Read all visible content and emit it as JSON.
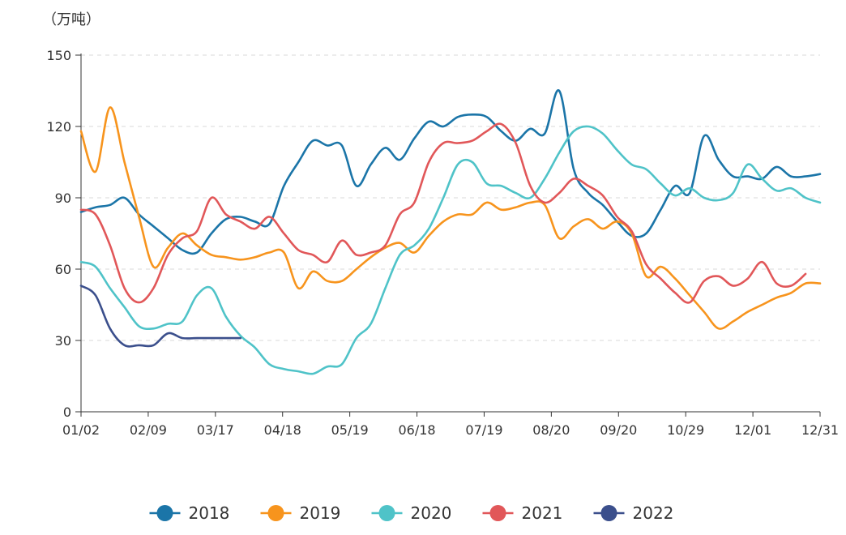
{
  "chart_data": {
    "type": "line",
    "title": "",
    "unit_label": "（万吨）",
    "xlabel": "",
    "ylabel": "",
    "ylim": [
      0,
      150
    ],
    "y_ticks": [
      0,
      30,
      60,
      90,
      120,
      150
    ],
    "x_tick_labels": [
      "01/02",
      "02/09",
      "03/17",
      "04/18",
      "05/19",
      "06/18",
      "07/19",
      "08/20",
      "09/20",
      "10/29",
      "12/01",
      "12/31"
    ],
    "grid": "horizontal-dashed",
    "legend_position": "bottom",
    "x_units": "week-of-year (1-52)",
    "series": [
      {
        "name": "2018",
        "color": "#1b75a8",
        "x": [
          1,
          2,
          3,
          4,
          5,
          6,
          7,
          8,
          9,
          10,
          11,
          12,
          13,
          14,
          15,
          16,
          17,
          18,
          19,
          20,
          21,
          22,
          23,
          24,
          25,
          26,
          27,
          28,
          29,
          30,
          31,
          32,
          33,
          34,
          35,
          36,
          37,
          38,
          39,
          40,
          41,
          42,
          43,
          44,
          45,
          46,
          47,
          48,
          49,
          50,
          51,
          52
        ],
        "y": [
          84,
          86,
          87,
          90,
          83,
          78,
          73,
          68,
          67,
          75,
          81,
          82,
          80,
          79,
          95,
          105,
          114,
          112,
          112,
          95,
          104,
          111,
          106,
          115,
          122,
          120,
          124,
          125,
          124,
          118,
          114,
          119,
          117,
          135,
          102,
          92,
          87,
          80,
          74,
          75,
          85,
          95,
          92,
          116,
          106,
          99,
          99,
          98,
          103,
          99,
          99,
          100
        ]
      },
      {
        "name": "2019",
        "color": "#f7941d",
        "x": [
          1,
          2,
          3,
          4,
          5,
          6,
          7,
          8,
          9,
          10,
          11,
          12,
          13,
          14,
          15,
          16,
          17,
          18,
          19,
          20,
          21,
          22,
          23,
          24,
          25,
          26,
          27,
          28,
          29,
          30,
          31,
          32,
          33,
          34,
          35,
          36,
          37,
          38,
          39,
          40,
          41,
          42,
          43,
          44,
          45,
          46,
          47,
          48,
          49,
          50,
          51,
          52
        ],
        "y": [
          118,
          101,
          128,
          105,
          82,
          61,
          69,
          75,
          70,
          66,
          65,
          64,
          65,
          67,
          67,
          52,
          59,
          55,
          55,
          60,
          65,
          69,
          71,
          67,
          74,
          80,
          83,
          83,
          88,
          85,
          86,
          88,
          87,
          73,
          78,
          81,
          77,
          80,
          75,
          57,
          61,
          56,
          49,
          42,
          35,
          38,
          42,
          45,
          48,
          50,
          54,
          54
        ]
      },
      {
        "name": "2020",
        "color": "#4fc3c8",
        "x": [
          1,
          2,
          3,
          4,
          5,
          6,
          7,
          8,
          9,
          10,
          11,
          12,
          13,
          14,
          15,
          16,
          17,
          18,
          19,
          20,
          21,
          22,
          23,
          24,
          25,
          26,
          27,
          28,
          29,
          30,
          31,
          32,
          33,
          34,
          35,
          36,
          37,
          38,
          39,
          40,
          41,
          42,
          43,
          44,
          45,
          46,
          47,
          48,
          49,
          50,
          51,
          52
        ],
        "y": [
          63,
          61,
          52,
          44,
          36,
          35,
          37,
          38,
          49,
          52,
          40,
          32,
          27,
          20,
          18,
          17,
          16,
          19,
          20,
          31,
          37,
          52,
          66,
          70,
          77,
          90,
          104,
          105,
          96,
          95,
          92,
          90,
          98,
          109,
          118,
          120,
          117,
          110,
          104,
          102,
          96,
          91,
          94,
          90,
          89,
          92,
          104,
          98,
          93,
          94,
          90,
          88
        ]
      },
      {
        "name": "2021",
        "color": "#e15759",
        "x": [
          1,
          2,
          3,
          4,
          5,
          6,
          7,
          8,
          9,
          10,
          11,
          12,
          13,
          14,
          15,
          16,
          17,
          18,
          19,
          20,
          21,
          22,
          23,
          24,
          25,
          26,
          27,
          28,
          29,
          30,
          31,
          32,
          33,
          34,
          35,
          36,
          37,
          38,
          39,
          40,
          41,
          42,
          43,
          44,
          45,
          46,
          47,
          48,
          49,
          50,
          51
        ],
        "y": [
          85,
          83,
          70,
          52,
          46,
          52,
          66,
          73,
          76,
          90,
          83,
          80,
          77,
          82,
          75,
          68,
          66,
          63,
          72,
          66,
          67,
          70,
          83,
          88,
          105,
          113,
          113,
          114,
          118,
          121,
          113,
          95,
          88,
          92,
          98,
          95,
          91,
          82,
          76,
          62,
          56,
          50,
          46,
          55,
          57,
          53,
          56,
          63,
          54,
          53,
          58
        ]
      },
      {
        "name": "2022",
        "color": "#3b4f8c",
        "x": [
          1,
          2,
          3,
          4,
          5,
          6,
          7,
          8,
          9,
          10,
          11,
          12
        ],
        "y": [
          53,
          49,
          35,
          28,
          28,
          28,
          33,
          31,
          31,
          31,
          31,
          31
        ]
      }
    ]
  }
}
